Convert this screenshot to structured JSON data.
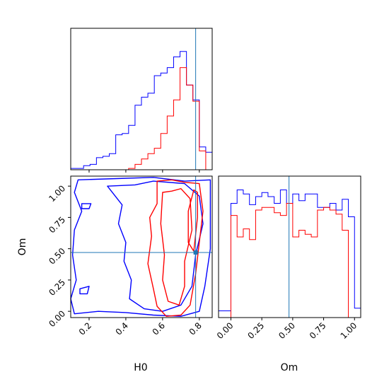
{
  "chart_data": [
    {
      "panel": "H0 marginal",
      "type": "histogram",
      "xlim": [
        0.1,
        0.87
      ],
      "bin_edges": [
        0.1,
        0.135,
        0.17,
        0.205,
        0.24,
        0.275,
        0.31,
        0.345,
        0.38,
        0.415,
        0.45,
        0.485,
        0.52,
        0.555,
        0.59,
        0.625,
        0.66,
        0.695,
        0.73,
        0.765,
        0.8,
        0.835,
        0.87
      ],
      "series": [
        {
          "color": "#0000ff",
          "counts": [
            0.01,
            0.01,
            0.03,
            0.04,
            0.09,
            0.1,
            0.12,
            0.26,
            0.27,
            0.33,
            0.48,
            0.54,
            0.57,
            0.7,
            0.72,
            0.76,
            0.84,
            0.88,
            0.63,
            0.52,
            0.17,
            0.13
          ]
        },
        {
          "color": "#ff0000",
          "counts": [
            0,
            0,
            0,
            0,
            0,
            0,
            0,
            0,
            0,
            0.01,
            0.04,
            0.08,
            0.12,
            0.16,
            0.27,
            0.4,
            0.52,
            0.76,
            0.63,
            0.51,
            0.14,
            0
          ]
        }
      ],
      "truth_line": 0.78
    },
    {
      "panel": "Om vs H0 joint",
      "type": "contour",
      "xlabel": "H0",
      "ylabel": "Om",
      "xlim": [
        0.1,
        0.87
      ],
      "ylim": [
        -0.05,
        1.08
      ],
      "xticks": [
        "0.2",
        "0.4",
        "0.6",
        "0.8"
      ],
      "yticks": [
        "0.00",
        "0.25",
        "0.50",
        "0.75",
        "1.00"
      ],
      "truth_point": [
        0.78,
        0.47
      ],
      "series": [
        {
          "color": "#0000ff",
          "contours": [
            [
              [
                0.14,
                1.05
              ],
              [
                0.35,
                1.06
              ],
              [
                0.55,
                1.07
              ],
              [
                0.72,
                1.04
              ],
              [
                0.86,
                1.05
              ],
              [
                0.86,
                0.8
              ],
              [
                0.86,
                0.5
              ],
              [
                0.83,
                0.2
              ],
              [
                0.8,
                0.0
              ],
              [
                0.7,
                -0.04
              ],
              [
                0.55,
                -0.03
              ],
              [
                0.4,
                -0.01
              ],
              [
                0.25,
                0.0
              ],
              [
                0.12,
                -0.02
              ],
              [
                0.1,
                0.1
              ],
              [
                0.13,
                0.25
              ],
              [
                0.11,
                0.45
              ],
              [
                0.12,
                0.65
              ],
              [
                0.16,
                0.8
              ],
              [
                0.12,
                0.95
              ]
            ],
            [
              [
                0.3,
                1.0
              ],
              [
                0.38,
                0.85
              ],
              [
                0.36,
                0.7
              ],
              [
                0.4,
                0.55
              ],
              [
                0.39,
                0.4
              ],
              [
                0.43,
                0.25
              ],
              [
                0.42,
                0.1
              ],
              [
                0.5,
                0.02
              ],
              [
                0.6,
                0.0
              ],
              [
                0.7,
                0.05
              ],
              [
                0.76,
                0.2
              ],
              [
                0.78,
                0.45
              ],
              [
                0.82,
                0.7
              ],
              [
                0.8,
                0.92
              ],
              [
                0.72,
                1.02
              ],
              [
                0.55,
                1.04
              ],
              [
                0.45,
                1.01
              ]
            ],
            [
              [
                0.16,
                0.86
              ],
              [
                0.21,
                0.86
              ],
              [
                0.2,
                0.82
              ],
              [
                0.16,
                0.82
              ]
            ],
            [
              [
                0.15,
                0.18
              ],
              [
                0.2,
                0.2
              ],
              [
                0.19,
                0.14
              ],
              [
                0.15,
                0.14
              ]
            ]
          ]
        },
        {
          "color": "#ff0000",
          "contours": [
            [
              [
                0.54,
                0.6
              ],
              [
                0.52,
                0.38
              ],
              [
                0.55,
                0.18
              ],
              [
                0.57,
                0.04
              ],
              [
                0.62,
                -0.04
              ],
              [
                0.7,
                -0.03
              ],
              [
                0.75,
                0.05
              ],
              [
                0.78,
                0.3
              ],
              [
                0.8,
                0.55
              ],
              [
                0.82,
                0.8
              ],
              [
                0.8,
                1.02
              ],
              [
                0.72,
                1.03
              ],
              [
                0.65,
                1.05
              ],
              [
                0.57,
                1.04
              ],
              [
                0.57,
                0.86
              ],
              [
                0.53,
                0.75
              ]
            ],
            [
              [
                0.6,
                0.95
              ],
              [
                0.59,
                0.7
              ],
              [
                0.61,
                0.45
              ],
              [
                0.6,
                0.25
              ],
              [
                0.63,
                0.08
              ],
              [
                0.69,
                0.05
              ],
              [
                0.72,
                0.2
              ],
              [
                0.72,
                0.4
              ],
              [
                0.76,
                0.65
              ],
              [
                0.75,
                0.9
              ],
              [
                0.7,
                0.98
              ],
              [
                0.65,
                0.96
              ]
            ],
            [
              [
                0.77,
                0.97
              ],
              [
                0.74,
                0.8
              ],
              [
                0.74,
                0.55
              ],
              [
                0.77,
                0.48
              ],
              [
                0.79,
                0.75
              ],
              [
                0.79,
                0.95
              ]
            ]
          ]
        }
      ]
    },
    {
      "panel": "Om marginal",
      "type": "histogram",
      "xlabel": "Om",
      "xlim": [
        -0.1,
        1.05
      ],
      "xticks": [
        "0.00",
        "0.25",
        "0.50",
        "0.75",
        "1.00"
      ],
      "bin_edges": [
        -0.1,
        -0.05,
        0.0,
        0.05,
        0.1,
        0.15,
        0.2,
        0.25,
        0.3,
        0.35,
        0.4,
        0.45,
        0.5,
        0.55,
        0.6,
        0.65,
        0.7,
        0.75,
        0.8,
        0.85,
        0.9,
        0.95,
        1.0,
        1.05
      ],
      "series": [
        {
          "color": "#0000ff",
          "counts": [
            0.05,
            0.05,
            0.85,
            0.95,
            0.92,
            0.84,
            0.9,
            0.93,
            0.9,
            0.85,
            0.95,
            0.85,
            0.92,
            0.87,
            0.92,
            0.92,
            0.82,
            0.82,
            0.85,
            0.8,
            0.88,
            0.75,
            0.07
          ]
        },
        {
          "color": "#ff0000",
          "counts": [
            0,
            0,
            0.76,
            0.6,
            0.66,
            0.58,
            0.8,
            0.82,
            0.82,
            0.78,
            0.76,
            0.85,
            0.6,
            0.65,
            0.62,
            0.6,
            0.8,
            0.82,
            0.8,
            0.77,
            0.65,
            0,
            0
          ]
        }
      ],
      "truth_line": 0.47
    }
  ],
  "colors": {
    "truth": "#1f77b4",
    "axis": "#000000",
    "background": "#ffffff"
  }
}
